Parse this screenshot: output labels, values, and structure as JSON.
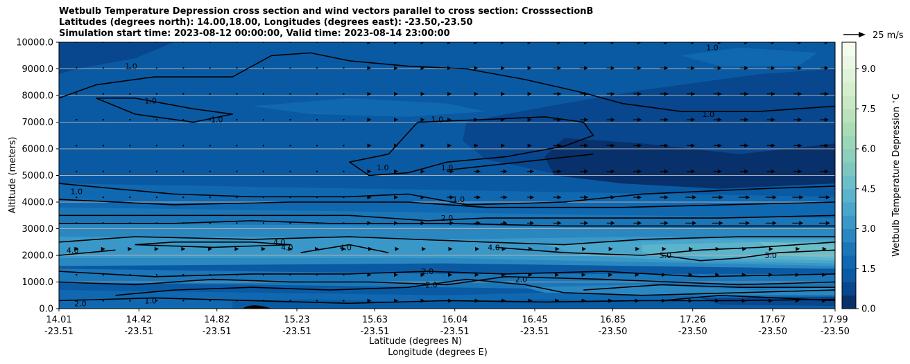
{
  "chart_data": {
    "type": "contour",
    "title_lines": [
      "Wetbulb Temperature Depression cross section and wind vectors parallel to cross section: CrosssectionB",
      "Latitudes (degrees north): 14.00,18.00, Longitudes (degrees east): -23.50,-23.50",
      "Simulation start time: 2023-08-12 00:00:00, Valid time: 2023-08-14 23:00:00"
    ],
    "ylabel": "Altitude (meters)",
    "xlabel_lat": "Latitude (degrees N)",
    "xlabel_lon": "Longitude (degrees E)",
    "ylim": [
      0,
      10000
    ],
    "xlim": [
      14.01,
      17.99
    ],
    "y_ticks": [
      "0.0",
      "1000.0",
      "2000.0",
      "3000.0",
      "4000.0",
      "5000.0",
      "6000.0",
      "7000.0",
      "8000.0",
      "9000.0",
      "10000.0"
    ],
    "y_tick_values": [
      0,
      1000,
      2000,
      3000,
      4000,
      5000,
      6000,
      7000,
      8000,
      9000,
      10000
    ],
    "x_ticks": [
      {
        "lat": "14.01",
        "lon": "-23.51",
        "value": 14.01
      },
      {
        "lat": "14.42",
        "lon": "-23.51",
        "value": 14.42
      },
      {
        "lat": "14.82",
        "lon": "-23.51",
        "value": 14.82
      },
      {
        "lat": "15.23",
        "lon": "-23.51",
        "value": 15.23
      },
      {
        "lat": "15.63",
        "lon": "-23.51",
        "value": 15.63
      },
      {
        "lat": "16.04",
        "lon": "-23.51",
        "value": 16.04
      },
      {
        "lat": "16.45",
        "lon": "-23.51",
        "value": 16.45
      },
      {
        "lat": "16.85",
        "lon": "-23.50",
        "value": 16.85
      },
      {
        "lat": "17.26",
        "lon": "-23.50",
        "value": 17.26
      },
      {
        "lat": "17.67",
        "lon": "-23.50",
        "value": 17.67
      },
      {
        "lat": "17.99",
        "lon": "-23.50",
        "value": 17.99
      }
    ],
    "colorbar": {
      "label": "Wetbulb Temperature Depression $^\\circ$C",
      "range": [
        0,
        10
      ],
      "ticks": [
        "0.0",
        "1.5",
        "3.0",
        "4.5",
        "6.0",
        "7.5",
        "9.0"
      ],
      "tick_values": [
        0,
        1.5,
        3,
        4.5,
        6,
        7.5,
        9
      ],
      "colors": [
        "#08306b",
        "#08468d",
        "#0a5aa3",
        "#1068b0",
        "#1b76b8",
        "#2b87c0",
        "#3a98c8",
        "#4aa6cb",
        "#5bb3cc",
        "#6cbfc9",
        "#7cc7c2",
        "#8ccfbd",
        "#9bd6b8",
        "#aadcb5",
        "#bae3bb",
        "#c8e9c3",
        "#d5efcd",
        "#e0f3d8",
        "#eaf7e4",
        "#f4fbef"
      ]
    },
    "quiver_key": {
      "label": "25 m/s",
      "speed": 25
    },
    "contour_levels": [
      "1.0",
      "2.0",
      "4.0",
      "5.0"
    ],
    "contour_labels": [
      {
        "text": "1.0",
        "lat": 14.38,
        "alt": 9100
      },
      {
        "text": "1.0",
        "lat": 14.48,
        "alt": 7800
      },
      {
        "text": "1.0",
        "lat": 14.82,
        "alt": 7100
      },
      {
        "text": "1.0",
        "lat": 15.95,
        "alt": 7100
      },
      {
        "text": "1.0",
        "lat": 15.67,
        "alt": 5300
      },
      {
        "text": "1.0",
        "lat": 16.0,
        "alt": 5300
      },
      {
        "text": "1.0",
        "lat": 16.06,
        "alt": 4100
      },
      {
        "text": "1.0",
        "lat": 17.34,
        "alt": 7300
      },
      {
        "text": "1.0",
        "lat": 17.36,
        "alt": 9800
      },
      {
        "text": "1.0",
        "lat": 14.1,
        "alt": 4400
      },
      {
        "text": "2.0",
        "lat": 16.0,
        "alt": 3400
      },
      {
        "text": "2.0",
        "lat": 15.9,
        "alt": 1400
      },
      {
        "text": "2.0",
        "lat": 15.92,
        "alt": 900
      },
      {
        "text": "4.0",
        "lat": 14.08,
        "alt": 2200
      },
      {
        "text": "4.0",
        "lat": 15.14,
        "alt": 2500
      },
      {
        "text": "4.0",
        "lat": 15.18,
        "alt": 2300
      },
      {
        "text": "4.0",
        "lat": 15.48,
        "alt": 2300
      },
      {
        "text": "4.0",
        "lat": 16.24,
        "alt": 2300
      },
      {
        "text": "5.0",
        "lat": 17.12,
        "alt": 2000
      },
      {
        "text": "5.0",
        "lat": 17.66,
        "alt": 2000
      },
      {
        "text": "2.0",
        "lat": 16.38,
        "alt": 1100
      },
      {
        "text": "1.0",
        "lat": 14.48,
        "alt": 300
      },
      {
        "text": "2.0",
        "lat": 14.12,
        "alt": 200
      }
    ]
  }
}
